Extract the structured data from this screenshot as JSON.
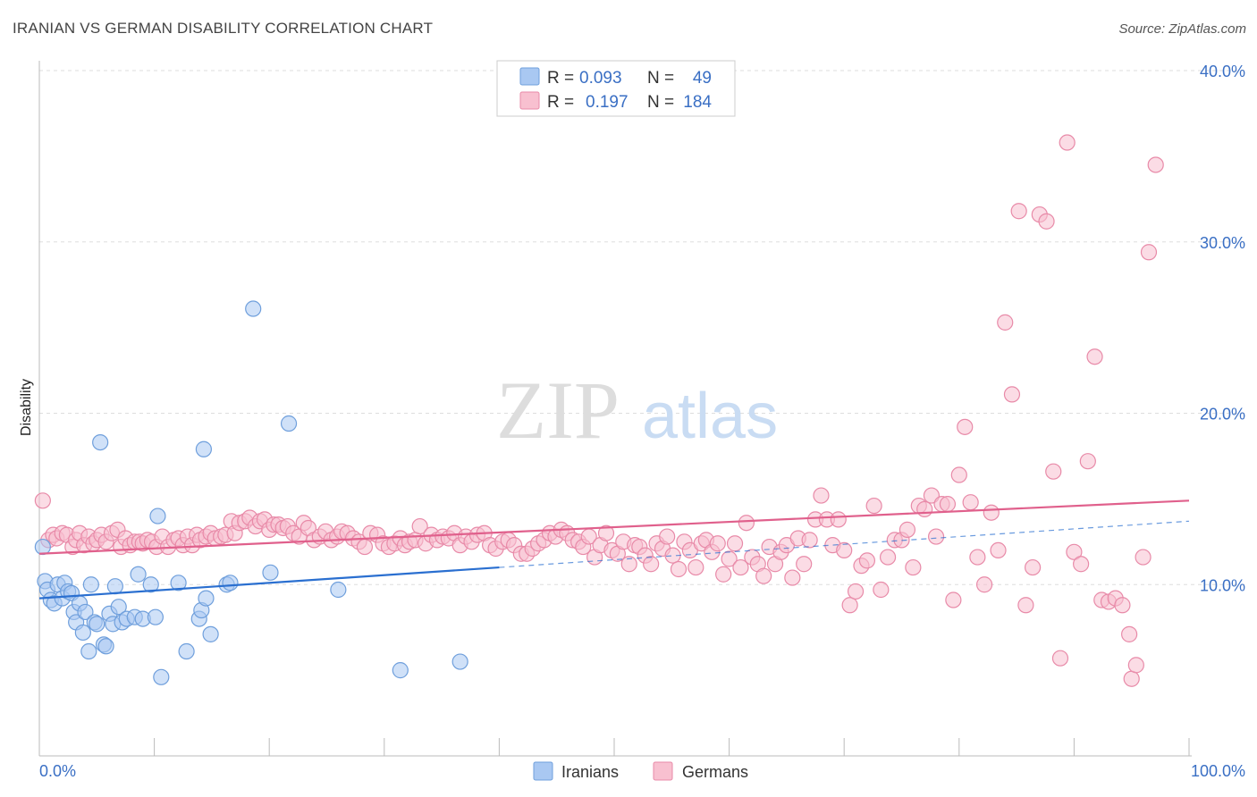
{
  "title": "IRANIAN VS GERMAN DISABILITY CORRELATION CHART",
  "source": "Source: ZipAtlas.com",
  "watermark": {
    "zip": "ZIP",
    "atlas": "atlas"
  },
  "legend_top": [
    {
      "r_label": "R =",
      "r_value": "0.093",
      "n_label": "N =",
      "n_value": "49",
      "color": "#a9c8f2",
      "stroke": "#6f9fdc"
    },
    {
      "r_label": "R =",
      "r_value": "0.197",
      "n_label": "N =",
      "n_value": "184",
      "color": "#f8c0d0",
      "stroke": "#e88aa8"
    }
  ],
  "legend_bottom": [
    {
      "label": "Iranians",
      "color": "#a9c8f2",
      "stroke": "#6f9fdc"
    },
    {
      "label": "Germans",
      "color": "#f8c0d0",
      "stroke": "#e88aa8"
    }
  ],
  "chart_data": {
    "type": "scatter",
    "title": "IRANIAN VS GERMAN DISABILITY CORRELATION CHART",
    "xlabel": "",
    "ylabel": "Disability",
    "xlim": [
      0,
      100
    ],
    "ylim": [
      0,
      40
    ],
    "x_tick_labels": [
      "0.0%",
      "100.0%"
    ],
    "y_ticks": [
      10,
      20,
      30,
      40
    ],
    "y_tick_labels": [
      "10.0%",
      "20.0%",
      "30.0%",
      "40.0%"
    ],
    "grid": true,
    "legend_position": "top-center",
    "series": [
      {
        "name": "Iranians",
        "color": "#6f9fdc",
        "fill": "#a9c8f2",
        "trend": {
          "x": [
            0,
            40
          ],
          "y": [
            9.2,
            11.0
          ],
          "dashed_to": [
            100,
            13.7
          ]
        },
        "points": [
          [
            0.3,
            12.2
          ],
          [
            0.5,
            10.2
          ],
          [
            0.7,
            9.7
          ],
          [
            1.0,
            9.1
          ],
          [
            1.3,
            8.9
          ],
          [
            1.6,
            10.0
          ],
          [
            2.0,
            9.2
          ],
          [
            2.2,
            10.1
          ],
          [
            2.5,
            9.6
          ],
          [
            2.8,
            9.5
          ],
          [
            3.0,
            8.4
          ],
          [
            3.2,
            7.8
          ],
          [
            3.5,
            8.9
          ],
          [
            3.8,
            7.2
          ],
          [
            4.0,
            8.4
          ],
          [
            4.3,
            6.1
          ],
          [
            4.5,
            10.0
          ],
          [
            4.8,
            7.8
          ],
          [
            5.0,
            7.7
          ],
          [
            5.3,
            18.3
          ],
          [
            5.6,
            6.5
          ],
          [
            5.8,
            6.4
          ],
          [
            6.1,
            8.3
          ],
          [
            6.4,
            7.7
          ],
          [
            6.6,
            9.9
          ],
          [
            6.9,
            8.7
          ],
          [
            7.2,
            7.8
          ],
          [
            7.6,
            8.0
          ],
          [
            8.3,
            8.1
          ],
          [
            8.6,
            10.6
          ],
          [
            9.0,
            8.0
          ],
          [
            9.7,
            10.0
          ],
          [
            10.1,
            8.1
          ],
          [
            10.3,
            14.0
          ],
          [
            10.6,
            4.6
          ],
          [
            12.1,
            10.1
          ],
          [
            12.8,
            6.1
          ],
          [
            13.9,
            8.0
          ],
          [
            14.1,
            8.5
          ],
          [
            14.3,
            17.9
          ],
          [
            14.5,
            9.2
          ],
          [
            14.9,
            7.1
          ],
          [
            16.3,
            10.0
          ],
          [
            16.6,
            10.1
          ],
          [
            18.6,
            26.1
          ],
          [
            20.1,
            10.7
          ],
          [
            21.7,
            19.4
          ],
          [
            26.0,
            9.7
          ],
          [
            31.4,
            5.0
          ],
          [
            36.6,
            5.5
          ]
        ]
      },
      {
        "name": "Germans",
        "color": "#e88aa8",
        "fill": "#f8c0d0",
        "trend": {
          "x": [
            0,
            100
          ],
          "y": [
            11.8,
            14.9
          ]
        },
        "points": [
          [
            0.3,
            14.9
          ],
          [
            0.8,
            12.6
          ],
          [
            1.2,
            12.9
          ],
          [
            1.5,
            12.7
          ],
          [
            2.0,
            13.0
          ],
          [
            2.4,
            12.9
          ],
          [
            2.9,
            12.2
          ],
          [
            3.2,
            12.6
          ],
          [
            3.5,
            13.0
          ],
          [
            3.9,
            12.3
          ],
          [
            4.3,
            12.8
          ],
          [
            4.7,
            12.4
          ],
          [
            5.0,
            12.6
          ],
          [
            5.4,
            12.9
          ],
          [
            5.8,
            12.5
          ],
          [
            6.3,
            13.0
          ],
          [
            6.8,
            13.2
          ],
          [
            7.1,
            12.2
          ],
          [
            7.5,
            12.7
          ],
          [
            7.9,
            12.3
          ],
          [
            8.3,
            12.5
          ],
          [
            8.7,
            12.5
          ],
          [
            9.0,
            12.4
          ],
          [
            9.4,
            12.6
          ],
          [
            9.8,
            12.5
          ],
          [
            10.2,
            12.2
          ],
          [
            10.7,
            12.8
          ],
          [
            11.2,
            12.2
          ],
          [
            11.7,
            12.6
          ],
          [
            12.1,
            12.7
          ],
          [
            12.5,
            12.3
          ],
          [
            12.9,
            12.8
          ],
          [
            13.3,
            12.3
          ],
          [
            13.7,
            12.9
          ],
          [
            14.0,
            12.6
          ],
          [
            14.5,
            12.8
          ],
          [
            14.9,
            13.0
          ],
          [
            15.3,
            12.7
          ],
          [
            15.8,
            12.8
          ],
          [
            16.2,
            12.9
          ],
          [
            16.7,
            13.7
          ],
          [
            17.0,
            13.0
          ],
          [
            17.4,
            13.6
          ],
          [
            17.9,
            13.7
          ],
          [
            18.3,
            13.9
          ],
          [
            18.8,
            13.4
          ],
          [
            19.2,
            13.7
          ],
          [
            19.6,
            13.8
          ],
          [
            20.0,
            13.2
          ],
          [
            20.4,
            13.5
          ],
          [
            20.8,
            13.5
          ],
          [
            21.2,
            13.3
          ],
          [
            21.6,
            13.4
          ],
          [
            22.1,
            13.0
          ],
          [
            22.6,
            12.8
          ],
          [
            23.0,
            13.6
          ],
          [
            23.4,
            13.3
          ],
          [
            23.9,
            12.6
          ],
          [
            24.4,
            12.8
          ],
          [
            24.9,
            13.1
          ],
          [
            25.4,
            12.6
          ],
          [
            25.9,
            12.8
          ],
          [
            26.3,
            13.1
          ],
          [
            26.8,
            13.0
          ],
          [
            27.3,
            12.7
          ],
          [
            27.8,
            12.5
          ],
          [
            28.3,
            12.2
          ],
          [
            28.8,
            13.0
          ],
          [
            29.4,
            12.9
          ],
          [
            29.9,
            12.4
          ],
          [
            30.4,
            12.2
          ],
          [
            30.9,
            12.4
          ],
          [
            31.4,
            12.7
          ],
          [
            31.8,
            12.3
          ],
          [
            32.2,
            12.5
          ],
          [
            32.7,
            12.6
          ],
          [
            33.1,
            13.4
          ],
          [
            33.6,
            12.4
          ],
          [
            34.1,
            12.9
          ],
          [
            34.6,
            12.6
          ],
          [
            35.1,
            12.8
          ],
          [
            35.6,
            12.7
          ],
          [
            36.1,
            13.0
          ],
          [
            36.6,
            12.3
          ],
          [
            37.1,
            12.8
          ],
          [
            37.6,
            12.5
          ],
          [
            38.1,
            12.9
          ],
          [
            38.7,
            13.0
          ],
          [
            39.2,
            12.3
          ],
          [
            39.7,
            12.1
          ],
          [
            40.3,
            12.5
          ],
          [
            40.8,
            12.6
          ],
          [
            41.3,
            12.3
          ],
          [
            41.9,
            11.8
          ],
          [
            42.4,
            11.8
          ],
          [
            42.9,
            12.1
          ],
          [
            43.4,
            12.4
          ],
          [
            43.9,
            12.6
          ],
          [
            44.4,
            13.0
          ],
          [
            44.9,
            12.8
          ],
          [
            45.4,
            13.2
          ],
          [
            45.9,
            13.0
          ],
          [
            46.4,
            12.6
          ],
          [
            46.9,
            12.5
          ],
          [
            47.3,
            12.2
          ],
          [
            47.8,
            12.8
          ],
          [
            48.3,
            11.6
          ],
          [
            48.8,
            12.3
          ],
          [
            49.3,
            13.0
          ],
          [
            49.8,
            12.0
          ],
          [
            50.3,
            11.8
          ],
          [
            50.8,
            12.5
          ],
          [
            51.3,
            11.2
          ],
          [
            51.8,
            12.3
          ],
          [
            52.2,
            12.2
          ],
          [
            52.7,
            11.7
          ],
          [
            53.2,
            11.2
          ],
          [
            53.7,
            12.4
          ],
          [
            54.2,
            12.1
          ],
          [
            54.6,
            12.8
          ],
          [
            55.1,
            11.7
          ],
          [
            55.6,
            10.9
          ],
          [
            56.1,
            12.5
          ],
          [
            56.6,
            12.0
          ],
          [
            57.1,
            11.0
          ],
          [
            57.6,
            12.4
          ],
          [
            58.0,
            12.6
          ],
          [
            58.5,
            11.9
          ],
          [
            59.0,
            12.4
          ],
          [
            59.5,
            10.6
          ],
          [
            60.0,
            11.5
          ],
          [
            60.5,
            12.4
          ],
          [
            61.0,
            11.0
          ],
          [
            61.5,
            13.6
          ],
          [
            62.0,
            11.6
          ],
          [
            62.5,
            11.2
          ],
          [
            63.0,
            10.5
          ],
          [
            63.5,
            12.2
          ],
          [
            64.0,
            11.2
          ],
          [
            64.5,
            11.9
          ],
          [
            65.0,
            12.3
          ],
          [
            65.5,
            10.4
          ],
          [
            66.0,
            12.7
          ],
          [
            66.5,
            11.2
          ],
          [
            67.0,
            12.6
          ],
          [
            67.5,
            13.8
          ],
          [
            68.0,
            15.2
          ],
          [
            68.5,
            13.8
          ],
          [
            69.0,
            12.3
          ],
          [
            69.5,
            13.8
          ],
          [
            70.0,
            12.0
          ],
          [
            70.5,
            8.8
          ],
          [
            71.0,
            9.6
          ],
          [
            71.5,
            11.1
          ],
          [
            72.0,
            11.4
          ],
          [
            72.6,
            14.6
          ],
          [
            73.2,
            9.7
          ],
          [
            73.8,
            11.6
          ],
          [
            74.4,
            12.6
          ],
          [
            75.0,
            12.6
          ],
          [
            75.5,
            13.2
          ],
          [
            76.0,
            11.0
          ],
          [
            76.5,
            14.6
          ],
          [
            77.0,
            14.4
          ],
          [
            77.6,
            15.2
          ],
          [
            78.0,
            12.8
          ],
          [
            78.5,
            14.7
          ],
          [
            79.0,
            14.7
          ],
          [
            79.5,
            9.1
          ],
          [
            80.0,
            16.4
          ],
          [
            80.5,
            19.2
          ],
          [
            81.0,
            14.8
          ],
          [
            81.6,
            11.6
          ],
          [
            82.2,
            10.0
          ],
          [
            82.8,
            14.2
          ],
          [
            83.4,
            12.0
          ],
          [
            84.0,
            25.3
          ],
          [
            84.6,
            21.1
          ],
          [
            85.2,
            31.8
          ],
          [
            85.8,
            8.8
          ],
          [
            86.4,
            11.0
          ],
          [
            87.0,
            31.6
          ],
          [
            87.6,
            31.2
          ],
          [
            88.2,
            16.6
          ],
          [
            88.8,
            5.7
          ],
          [
            89.4,
            35.8
          ],
          [
            90.0,
            11.9
          ],
          [
            90.6,
            11.2
          ],
          [
            91.2,
            17.2
          ],
          [
            91.8,
            23.3
          ],
          [
            92.4,
            9.1
          ],
          [
            93.0,
            9.0
          ],
          [
            93.6,
            9.2
          ],
          [
            94.2,
            8.8
          ],
          [
            94.8,
            7.1
          ],
          [
            95.0,
            4.5
          ],
          [
            95.4,
            5.3
          ],
          [
            96.0,
            11.6
          ],
          [
            96.5,
            29.4
          ],
          [
            97.1,
            34.5
          ]
        ]
      }
    ]
  }
}
